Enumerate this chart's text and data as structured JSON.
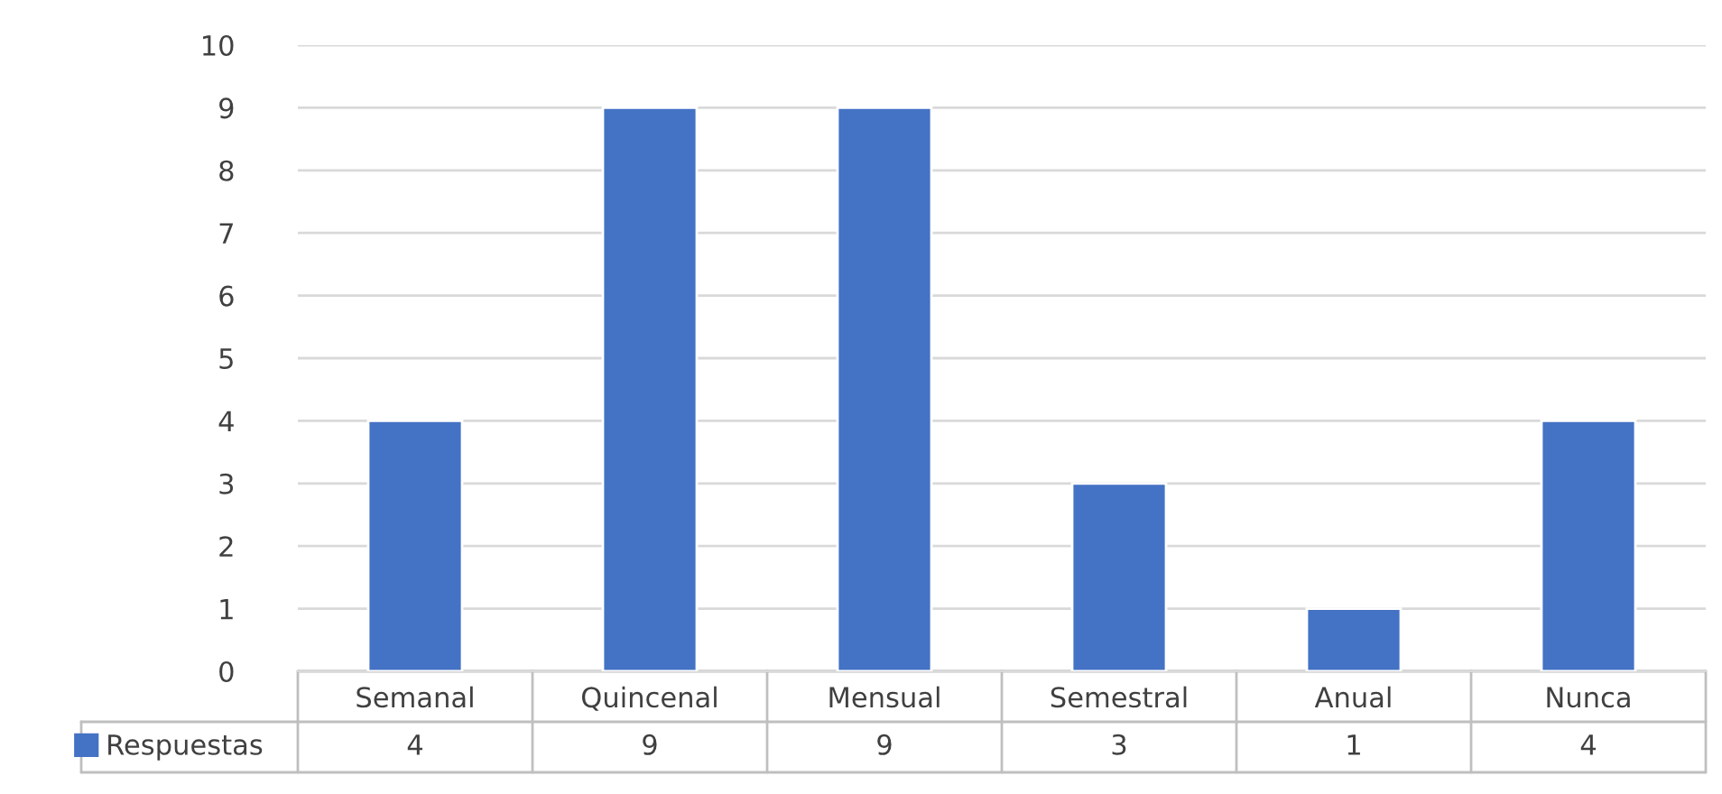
{
  "chart_data": {
    "type": "bar",
    "categories": [
      "Semanal",
      "Quincenal",
      "Mensual",
      "Semestral",
      "Anual",
      "Nunca"
    ],
    "series": [
      {
        "name": "Respuestas",
        "color": "#4472c4",
        "values": [
          4,
          9,
          9,
          3,
          1,
          4
        ]
      }
    ],
    "ylim": [
      0,
      10
    ],
    "yticks": [
      0,
      1,
      2,
      3,
      4,
      5,
      6,
      7,
      8,
      9,
      10
    ],
    "grid": "y",
    "legend": "bottom",
    "data_labels": true
  }
}
